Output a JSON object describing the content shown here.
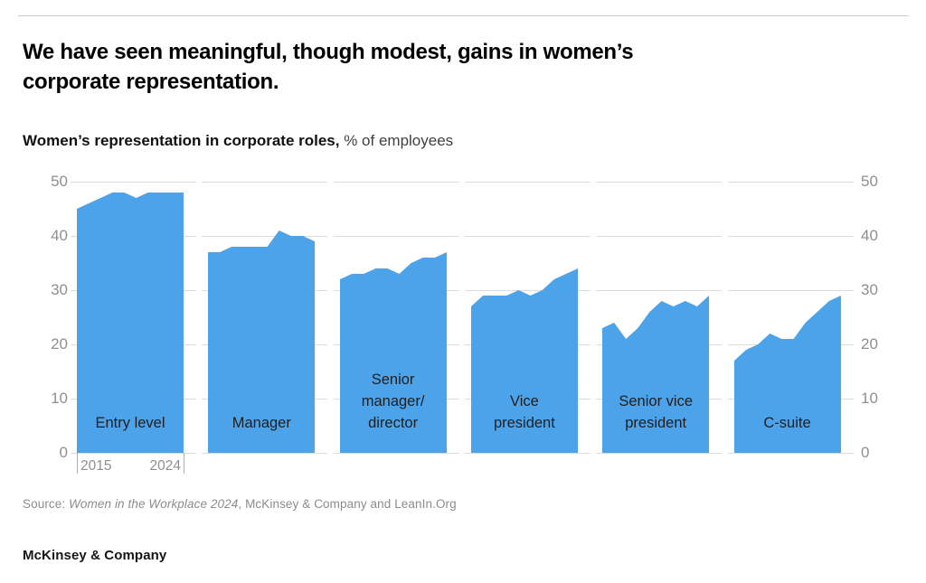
{
  "header": {
    "title_lines": [
      "We have seen meaningful, though modest, gains in women’s",
      "corporate representation."
    ],
    "subtitle_bold": "Women’s representation in corporate roles,",
    "subtitle_regular": " % of employees"
  },
  "chart_data": {
    "type": "area",
    "title": "Women’s representation in corporate roles",
    "unit": "% of employees",
    "x": [
      2015,
      2016,
      2017,
      2018,
      2019,
      2020,
      2021,
      2022,
      2023,
      2024
    ],
    "x_axis_labels": [
      "2015",
      "2024"
    ],
    "ylim": [
      0,
      50
    ],
    "yticks": [
      0,
      10,
      20,
      30,
      40,
      50
    ],
    "grid": true,
    "legend": "none",
    "area_color": "#4da3ea",
    "gridline_color": "#dcdcdc",
    "axis_label_color": "#8f8f8f",
    "series": [
      {
        "name": "Entry level",
        "label_lines": [
          "Entry level"
        ],
        "values": [
          45,
          46,
          47,
          48,
          48,
          47,
          48,
          48,
          48,
          48
        ]
      },
      {
        "name": "Manager",
        "label_lines": [
          "Manager"
        ],
        "values": [
          37,
          37,
          38,
          38,
          38,
          38,
          41,
          40,
          40,
          39
        ]
      },
      {
        "name": "Senior manager/director",
        "label_lines": [
          "Senior",
          "manager/",
          "director"
        ],
        "values": [
          32,
          33,
          33,
          34,
          34,
          33,
          35,
          36,
          36,
          37
        ]
      },
      {
        "name": "Vice president",
        "label_lines": [
          "Vice",
          "president"
        ],
        "values": [
          27,
          29,
          29,
          29,
          30,
          29,
          30,
          32,
          33,
          34
        ]
      },
      {
        "name": "Senior vice president",
        "label_lines": [
          "Senior vice",
          "president"
        ],
        "values": [
          23,
          24,
          21,
          23,
          26,
          28,
          27,
          28,
          27,
          29
        ]
      },
      {
        "name": "C-suite",
        "label_lines": [
          "C-suite"
        ],
        "values": [
          17,
          19,
          20,
          22,
          21,
          21,
          24,
          26,
          28,
          29
        ]
      }
    ]
  },
  "source": {
    "prefix": "Source: ",
    "italic_title": "Women in the Workplace 2024",
    "suffix": ", McKinsey & Company and LeanIn.Org"
  },
  "footer": {
    "brand": "McKinsey & Company"
  }
}
